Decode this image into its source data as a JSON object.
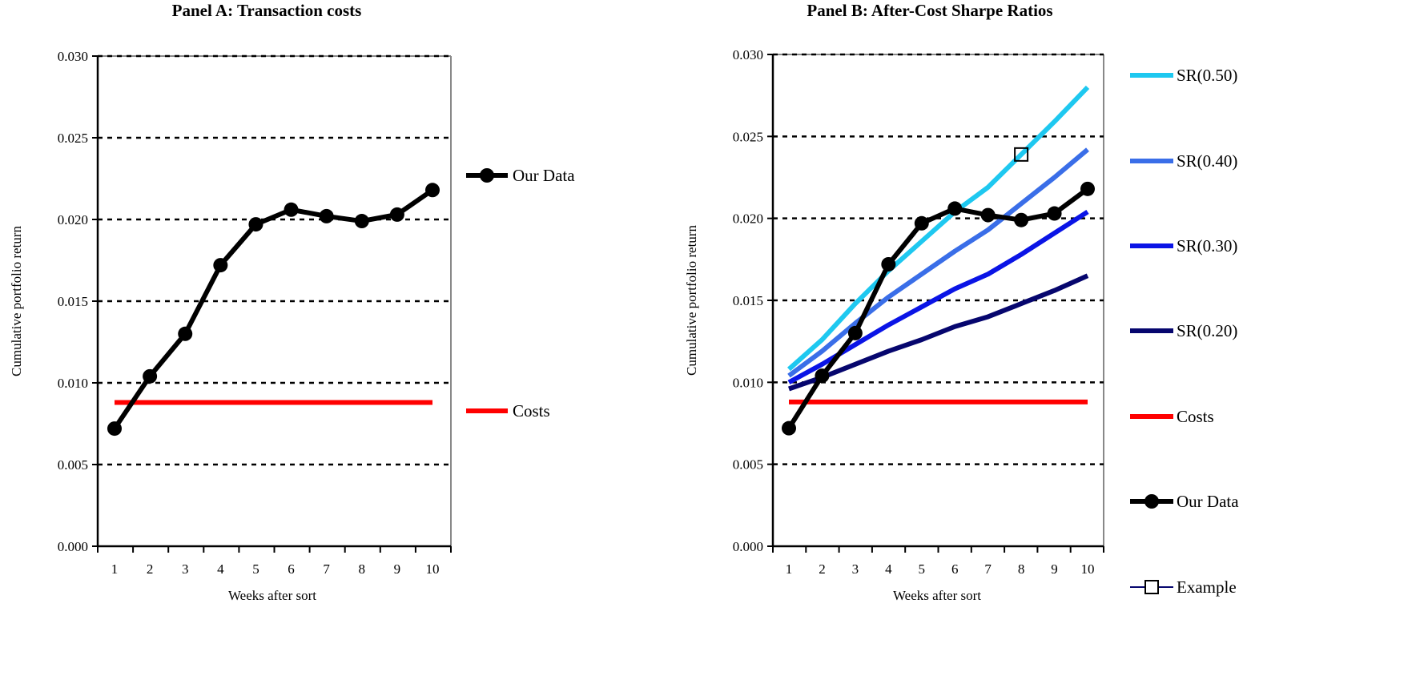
{
  "chart_data": [
    {
      "type": "line",
      "title": "Panel A:  Transaction costs",
      "xlabel": "Weeks after sort",
      "ylabel": "Cumulative portfolio return",
      "ylim": [
        0,
        0.03
      ],
      "yticks": [
        "0.000",
        "0.005",
        "0.010",
        "0.015",
        "0.020",
        "0.025",
        "0.030"
      ],
      "categories": [
        "1",
        "2",
        "3",
        "4",
        "5",
        "6",
        "7",
        "8",
        "9",
        "10"
      ],
      "grid": "horizontal dashed",
      "legend": "right",
      "series": [
        {
          "name": "Our Data",
          "color": "#000000",
          "marker": "circle",
          "values": [
            0.0072,
            0.0104,
            0.013,
            0.0172,
            0.0197,
            0.0206,
            0.0202,
            0.0199,
            0.0203,
            0.0218
          ]
        },
        {
          "name": "Costs",
          "color": "#ff0000",
          "marker": "none",
          "values": [
            0.0088,
            0.0088,
            0.0088,
            0.0088,
            0.0088,
            0.0088,
            0.0088,
            0.0088,
            0.0088,
            0.0088
          ]
        }
      ]
    },
    {
      "type": "line",
      "title": "Panel B:  After-Cost Sharpe Ratios",
      "xlabel": "Weeks after sort",
      "ylabel": "Cumulative portfolio return",
      "ylim": [
        0,
        0.03
      ],
      "yticks": [
        "0.000",
        "0.005",
        "0.010",
        "0.015",
        "0.020",
        "0.025",
        "0.030"
      ],
      "categories": [
        "1",
        "2",
        "3",
        "4",
        "5",
        "6",
        "7",
        "8",
        "9",
        "10"
      ],
      "grid": "horizontal dashed",
      "legend": "right",
      "series": [
        {
          "name": "SR(0.50)",
          "color": "#1ec8f0",
          "marker": "none",
          "values": [
            0.0108,
            0.0126,
            0.0148,
            0.0168,
            0.0186,
            0.0204,
            0.0219,
            0.0239,
            0.0259,
            0.028
          ]
        },
        {
          "name": "SR(0.40)",
          "color": "#3a6ee8",
          "marker": "none",
          "values": [
            0.0104,
            0.0119,
            0.0136,
            0.0152,
            0.0166,
            0.018,
            0.0193,
            0.0209,
            0.0225,
            0.0242
          ]
        },
        {
          "name": "SR(0.30)",
          "color": "#0a14e6",
          "marker": "none",
          "values": [
            0.01,
            0.0111,
            0.0123,
            0.0135,
            0.0146,
            0.0157,
            0.0166,
            0.0178,
            0.0191,
            0.0204
          ]
        },
        {
          "name": "SR(0.20)",
          "color": "#06066e",
          "marker": "none",
          "values": [
            0.0096,
            0.0103,
            0.0111,
            0.0119,
            0.0126,
            0.0134,
            0.014,
            0.0148,
            0.0156,
            0.0165
          ]
        },
        {
          "name": "Costs",
          "color": "#ff0000",
          "marker": "none",
          "values": [
            0.0088,
            0.0088,
            0.0088,
            0.0088,
            0.0088,
            0.0088,
            0.0088,
            0.0088,
            0.0088,
            0.0088
          ]
        },
        {
          "name": "Our Data",
          "color": "#000000",
          "marker": "circle",
          "values": [
            0.0072,
            0.0104,
            0.013,
            0.0172,
            0.0197,
            0.0206,
            0.0202,
            0.0199,
            0.0203,
            0.0218
          ]
        },
        {
          "name": "Example",
          "color": "#06066e",
          "marker": "square",
          "points": [
            {
              "x": "8",
              "y": 0.0239
            }
          ]
        }
      ]
    }
  ]
}
